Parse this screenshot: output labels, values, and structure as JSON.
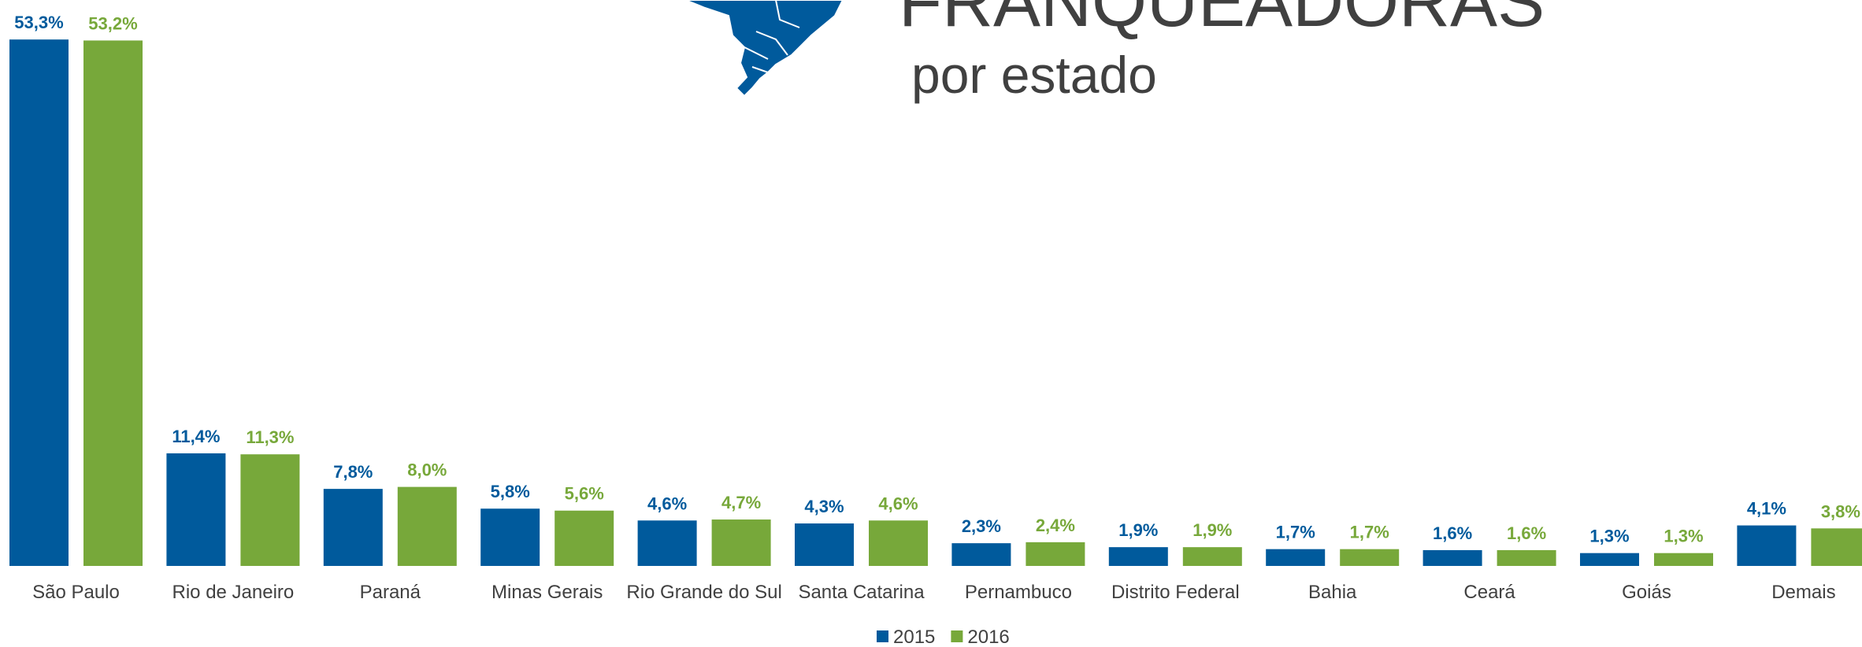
{
  "chart_data": {
    "type": "bar",
    "title": "FRANQUEADORAS",
    "subtitle": "por estado",
    "categories": [
      "São Paulo",
      "Rio de Janeiro",
      "Paraná",
      "Minas Gerais",
      "Rio Grande do Sul",
      "Santa Catarina",
      "Pernambuco",
      "Distrito Federal",
      "Bahia",
      "Ceará",
      "Goiás",
      "Demais"
    ],
    "series": [
      {
        "name": "2015",
        "color": "#005a9c",
        "values": [
          53.3,
          11.4,
          7.8,
          5.8,
          4.6,
          4.3,
          2.3,
          1.9,
          1.7,
          1.6,
          1.3,
          4.1
        ],
        "value_labels": [
          "53,3%",
          "11,4%",
          "7,8%",
          "5,8%",
          "4,6%",
          "4,3%",
          "2,3%",
          "1,9%",
          "1,7%",
          "1,6%",
          "1,3%",
          "4,1%"
        ]
      },
      {
        "name": "2016",
        "color": "#77a83a",
        "values": [
          53.2,
          11.3,
          8.0,
          5.6,
          4.7,
          4.6,
          2.4,
          1.9,
          1.7,
          1.6,
          1.3,
          3.8
        ],
        "value_labels": [
          "53,2%",
          "11,3%",
          "8,0%",
          "5,6%",
          "4,7%",
          "4,6%",
          "2,4%",
          "1,9%",
          "1,7%",
          "1,6%",
          "1,3%",
          "3,8%"
        ]
      }
    ],
    "ylim": [
      0,
      57.3
    ],
    "legend": "bottom"
  }
}
